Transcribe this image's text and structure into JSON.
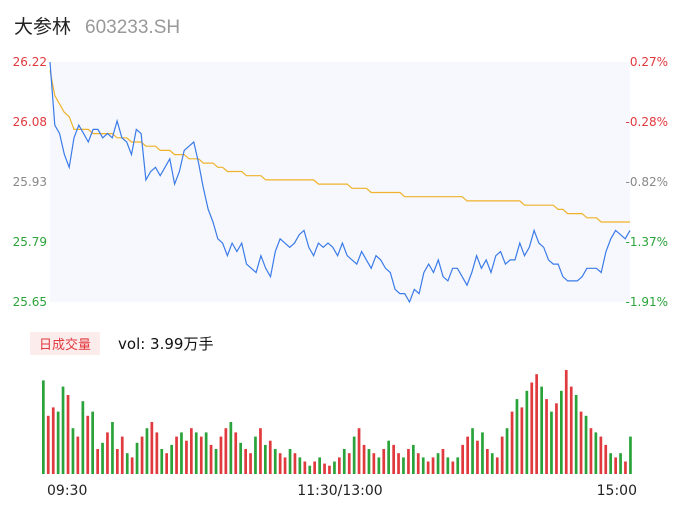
{
  "header": {
    "name": "大参林",
    "code": "603233.SH"
  },
  "volume_panel": {
    "badge": "日成交量",
    "vol_text": "vol: 3.99万手"
  },
  "colors": {
    "up": "#e0393e",
    "down": "#2aa33a",
    "price_line": "#3b7be8",
    "avg_line": "#f0b22b",
    "neutral": "#888888",
    "grid_fill": "#f6f8fd"
  },
  "chart_data": {
    "type": "line",
    "left_axis_labels": [
      "26.22",
      "26.08",
      "25.93",
      "25.79",
      "25.65"
    ],
    "right_axis_labels": [
      "0.27%",
      "-0.28%",
      "-0.82%",
      "-1.37%",
      "-1.91%"
    ],
    "ylim": [
      25.65,
      26.22
    ],
    "x_tick_labels": [
      "09:30",
      "11:30/13:00",
      "15:00"
    ],
    "prev_close": 26.15,
    "price": [
      26.22,
      26.07,
      26.05,
      26.0,
      25.97,
      26.04,
      26.07,
      26.05,
      26.03,
      26.06,
      26.06,
      26.04,
      26.05,
      26.04,
      26.08,
      26.04,
      26.03,
      26.0,
      26.06,
      26.05,
      25.94,
      25.96,
      25.97,
      25.95,
      25.97,
      25.99,
      25.93,
      25.96,
      26.01,
      26.02,
      26.03,
      25.98,
      25.92,
      25.87,
      25.84,
      25.8,
      25.79,
      25.76,
      25.79,
      25.77,
      25.79,
      25.74,
      25.73,
      25.72,
      25.76,
      25.73,
      25.71,
      25.77,
      25.8,
      25.79,
      25.78,
      25.79,
      25.81,
      25.82,
      25.78,
      25.76,
      25.79,
      25.78,
      25.79,
      25.78,
      25.76,
      25.79,
      25.76,
      25.75,
      25.74,
      25.77,
      25.75,
      25.73,
      25.76,
      25.75,
      25.73,
      25.72,
      25.68,
      25.67,
      25.67,
      25.65,
      25.68,
      25.67,
      25.72,
      25.74,
      25.72,
      25.75,
      25.71,
      25.7,
      25.73,
      25.73,
      25.71,
      25.69,
      25.72,
      25.76,
      25.73,
      25.75,
      25.72,
      25.76,
      25.77,
      25.74,
      25.75,
      25.75,
      25.79,
      25.76,
      25.78,
      25.82,
      25.79,
      25.78,
      25.75,
      25.74,
      25.74,
      25.71,
      25.7,
      25.7,
      25.7,
      25.71,
      25.73,
      25.73,
      25.73,
      25.72,
      25.77,
      25.8,
      25.82,
      25.81,
      25.8,
      25.82
    ],
    "avg": [
      26.2,
      26.14,
      26.12,
      26.1,
      26.09,
      26.06,
      26.06,
      26.06,
      26.06,
      26.05,
      26.05,
      26.05,
      26.05,
      26.05,
      26.04,
      26.04,
      26.04,
      26.03,
      26.03,
      26.03,
      26.02,
      26.02,
      26.02,
      26.01,
      26.01,
      26.01,
      26.0,
      26.0,
      26.0,
      25.99,
      25.99,
      25.99,
      25.98,
      25.98,
      25.98,
      25.97,
      25.97,
      25.96,
      25.96,
      25.96,
      25.96,
      25.95,
      25.95,
      25.95,
      25.95,
      25.94,
      25.94,
      25.94,
      25.94,
      25.94,
      25.94,
      25.94,
      25.94,
      25.94,
      25.94,
      25.94,
      25.93,
      25.93,
      25.93,
      25.93,
      25.93,
      25.93,
      25.93,
      25.92,
      25.92,
      25.92,
      25.92,
      25.91,
      25.91,
      25.91,
      25.91,
      25.91,
      25.91,
      25.91,
      25.9,
      25.9,
      25.9,
      25.9,
      25.9,
      25.9,
      25.9,
      25.9,
      25.9,
      25.9,
      25.9,
      25.9,
      25.9,
      25.89,
      25.89,
      25.89,
      25.89,
      25.89,
      25.89,
      25.89,
      25.89,
      25.89,
      25.89,
      25.89,
      25.89,
      25.88,
      25.88,
      25.88,
      25.88,
      25.88,
      25.88,
      25.88,
      25.87,
      25.87,
      25.86,
      25.86,
      25.86,
      25.86,
      25.85,
      25.85,
      25.85,
      25.84,
      25.84,
      25.84,
      25.84,
      25.84,
      25.84,
      25.84
    ],
    "volume": [
      45,
      28,
      32,
      30,
      42,
      38,
      22,
      18,
      35,
      28,
      30,
      12,
      15,
      20,
      25,
      12,
      18,
      10,
      8,
      15,
      18,
      22,
      25,
      20,
      12,
      10,
      14,
      18,
      20,
      16,
      22,
      20,
      18,
      20,
      14,
      12,
      18,
      22,
      25,
      20,
      15,
      12,
      10,
      18,
      22,
      14,
      16,
      12,
      10,
      8,
      12,
      10,
      8,
      6,
      4,
      6,
      8,
      5,
      4,
      6,
      8,
      12,
      10,
      18,
      22,
      14,
      12,
      10,
      8,
      12,
      16,
      14,
      10,
      8,
      12,
      14,
      10,
      8,
      6,
      8,
      10,
      12,
      8,
      6,
      8,
      14,
      18,
      22,
      16,
      20,
      12,
      10,
      8,
      18,
      22,
      30,
      36,
      32,
      40,
      44,
      48,
      42,
      36,
      30,
      34,
      40,
      50,
      42,
      38,
      30,
      28,
      22,
      20,
      18,
      14,
      10,
      8,
      10,
      6,
      18
    ],
    "volume_up": [
      false,
      true,
      true,
      false,
      false,
      true,
      false,
      true,
      false,
      true,
      false,
      true,
      false,
      true,
      false,
      true,
      true,
      false,
      true,
      false,
      true,
      false,
      true,
      true,
      false,
      true,
      false,
      true,
      false,
      true,
      true,
      false,
      true,
      false,
      true,
      false,
      true,
      true,
      false,
      true,
      false,
      true,
      true,
      false,
      true,
      false,
      true,
      false,
      true,
      true,
      false,
      true,
      false,
      true,
      false,
      true,
      false,
      true,
      true,
      false,
      true,
      false,
      true,
      false,
      true,
      true,
      false,
      true,
      false,
      true,
      false,
      true,
      true,
      false,
      true,
      false,
      true,
      false,
      true,
      true,
      false,
      true,
      false,
      true,
      false,
      true,
      true,
      false,
      true,
      false,
      true,
      false,
      true,
      true,
      false,
      true,
      false,
      true,
      false,
      true,
      true,
      false,
      true,
      false,
      true,
      false,
      true,
      true,
      false,
      true,
      false,
      true,
      false,
      true,
      true,
      false,
      true,
      false,
      true,
      false
    ]
  }
}
